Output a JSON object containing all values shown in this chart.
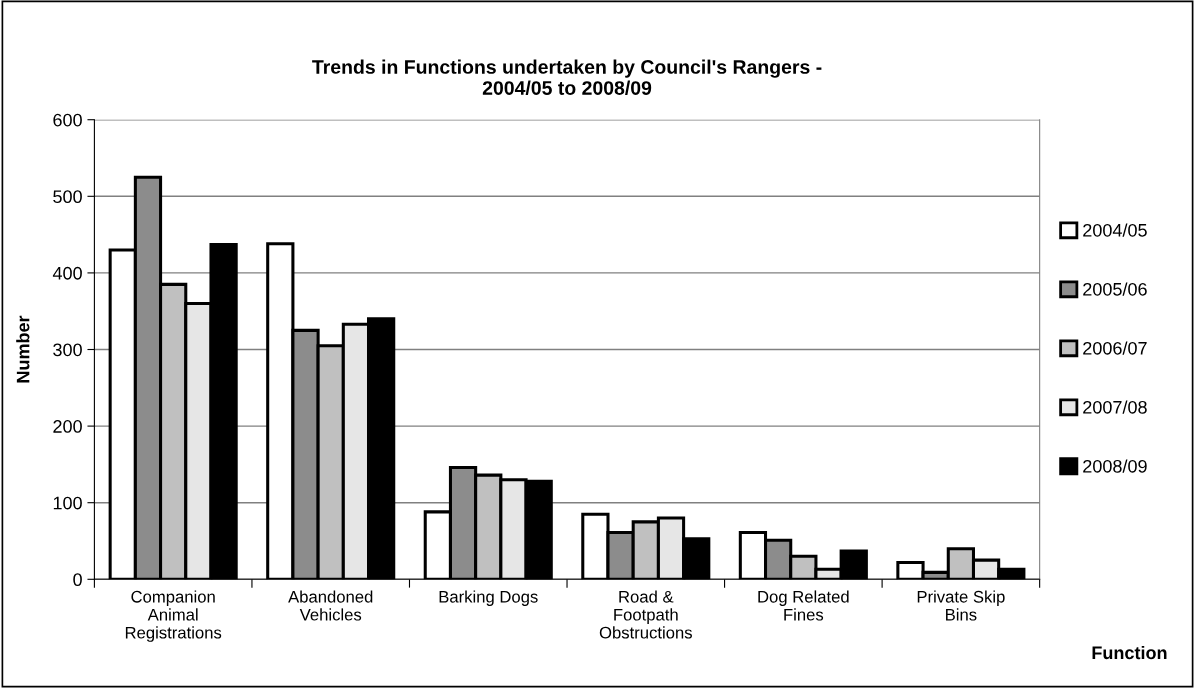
{
  "chart_data": {
    "type": "bar",
    "title": "Trends in Functions undertaken by Council's Rangers -\n2004/05 to 2008/09",
    "xlabel": "Function",
    "ylabel": "Number",
    "categories": [
      "Companion\nAnimal\nRegistrations",
      "Abandoned\nVehicles",
      "Barking Dogs",
      "Road &\nFootpath\nObstructions",
      "Dog Related\nFines",
      "Private Skip\nBins"
    ],
    "series": [
      {
        "name": "2004/05",
        "color": "#ffffff",
        "values": [
          430,
          438,
          88,
          85,
          61,
          22
        ]
      },
      {
        "name": "2005/06",
        "color": "#8c8c8c",
        "values": [
          525,
          325,
          146,
          61,
          51,
          9
        ]
      },
      {
        "name": "2006/07",
        "color": "#c0c0c0",
        "values": [
          385,
          305,
          136,
          75,
          30,
          40
        ]
      },
      {
        "name": "2007/08",
        "color": "#e6e6e6",
        "values": [
          360,
          333,
          130,
          80,
          13,
          25
        ]
      },
      {
        "name": "2008/09",
        "color": "#000000",
        "values": [
          437,
          340,
          128,
          53,
          37,
          13
        ]
      }
    ],
    "ylim": [
      0,
      600
    ],
    "yticks": [
      0,
      100,
      200,
      300,
      400,
      500,
      600
    ],
    "grid": "y",
    "legend": "right"
  }
}
